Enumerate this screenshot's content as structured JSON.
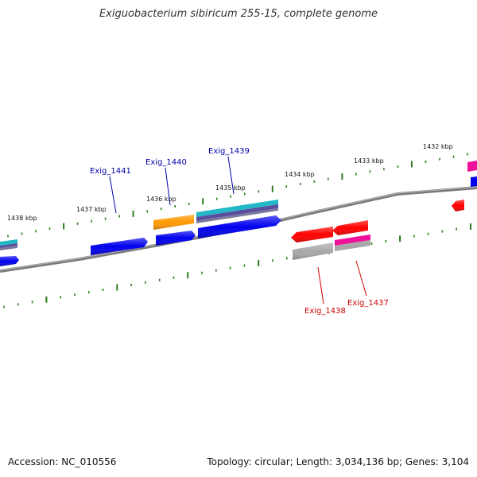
{
  "title": "Exiguobacterium sibiricum 255-15, complete genome",
  "footer": {
    "accession": "Accession: NC_010556",
    "topology": "Topology: circular; Length: 3,034,136 bp; Genes: 3,104"
  },
  "ticks": [
    {
      "label": "1438 kbp"
    },
    {
      "label": "1437 kbp"
    },
    {
      "label": "1436 kbp"
    },
    {
      "label": "1435 kbp"
    },
    {
      "label": "1434 kbp"
    },
    {
      "label": "1433 kbp"
    },
    {
      "label": "1432 kbp"
    }
  ],
  "gene_labels": [
    {
      "label": "Exig_1441"
    },
    {
      "label": "Exig_1440"
    },
    {
      "label": "Exig_1439"
    },
    {
      "label": "Exig_1438"
    },
    {
      "label": "Exig_1437"
    }
  ],
  "colors": {
    "backbone": "#7a7a7a",
    "tick": "#2e7d1f",
    "gene_blue": "#0000ee",
    "gene_red": "#ff0000",
    "gene_orange": "#ff9900",
    "gene_cyan": "#22b8c8",
    "gene_purple": "#5a4e9e",
    "gene_magenta": "#ee1199",
    "gene_gray": "#a8a8a8",
    "label_blue": "#0000aa",
    "label_red": "#cc0000"
  }
}
